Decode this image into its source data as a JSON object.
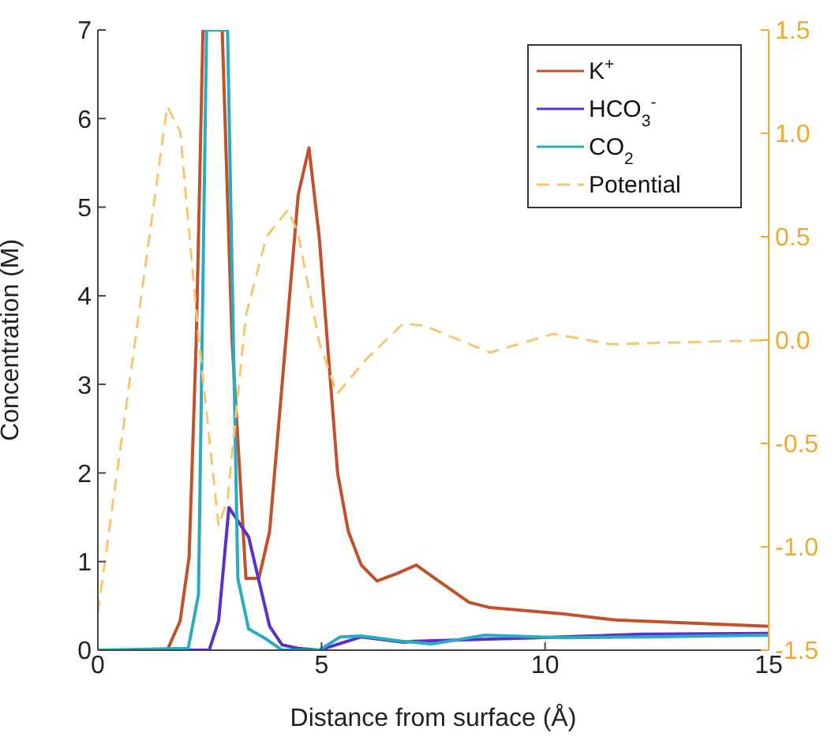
{
  "chart_data": {
    "type": "line",
    "xlabel": "Distance from surface (Å)",
    "ylabel": "Concentration (M)",
    "xlim": [
      0,
      15
    ],
    "xticks": [
      0,
      5,
      10,
      15
    ],
    "ylim": [
      0,
      7
    ],
    "yticks": [
      0,
      1,
      2,
      3,
      4,
      5,
      6,
      7
    ],
    "y2lim": [
      -1.5,
      1.5
    ],
    "y2ticks": [
      {
        "value": -1.5,
        "label": "-1.5"
      },
      {
        "value": -1,
        "label": "-1.0"
      },
      {
        "value": -0.5,
        "label": "-0.5"
      },
      {
        "value": 0,
        "label": "0.0"
      },
      {
        "value": 0.5,
        "label": "0.5"
      },
      {
        "value": 1,
        "label": "1.0"
      },
      {
        "value": 1.5,
        "label": "1.5"
      }
    ],
    "legend": "top right",
    "series": [
      {
        "name": "K$^{+}$",
        "color": "#c1502b",
        "x": [
          0,
          1.55,
          1.84,
          2.04,
          2.2,
          2.35,
          2.78,
          3.0,
          3.31,
          3.6,
          3.84,
          4.48,
          4.72,
          4.95,
          5.36,
          5.6,
          5.89,
          6.24,
          6.71,
          7.12,
          7.54,
          8.3,
          8.77,
          10.41,
          11.58,
          15
        ],
        "values": [
          0,
          0,
          0.33,
          1.05,
          3.5,
          7,
          7,
          3.5,
          0.81,
          0.81,
          1.34,
          5.14,
          5.67,
          4.66,
          2.0,
          1.34,
          0.96,
          0.78,
          0.87,
          0.96,
          0.81,
          0.54,
          0.48,
          0.41,
          0.34,
          0.27
        ]
      },
      {
        "name": "HCO$_{3}$$^{-}$",
        "color": "#5b30c9",
        "x": [
          0,
          2.49,
          2.7,
          2.93,
          3.37,
          3.84,
          4.12,
          4.48,
          4.95,
          5.89,
          6.83,
          7.07,
          9.82,
          12.17,
          15
        ],
        "values": [
          0,
          0,
          0.33,
          1.61,
          1.28,
          0.27,
          0.06,
          0.02,
          0,
          0.15,
          0.09,
          0.1,
          0.14,
          0.18,
          0.19
        ]
      },
      {
        "name": "CO$_{2}$",
        "color": "#2aacc0",
        "x": [
          0,
          2.02,
          2.25,
          2.43,
          2.9,
          3.13,
          3.37,
          3.78,
          4.12,
          4.95,
          5.42,
          5.89,
          6.83,
          7.48,
          8.65,
          10.41,
          12.17,
          15
        ],
        "values": [
          0,
          0.02,
          0.63,
          7,
          7,
          0.81,
          0.24,
          0.12,
          0,
          0,
          0.15,
          0.16,
          0.1,
          0.07,
          0.17,
          0.14,
          0.15,
          0.17
        ]
      },
      {
        "name": "Potential",
        "color": "#f7c66e",
        "axis": "y2",
        "line_style": "dashed",
        "x": [
          0,
          1.55,
          1.84,
          2.25,
          2.7,
          2.9,
          3.31,
          3.77,
          4.25,
          4.47,
          4.95,
          5.35,
          6.01,
          6.83,
          7.29,
          8.77,
          10.18,
          11.47,
          15
        ],
        "values": [
          -1.32,
          1.13,
          1.01,
          0.02,
          -0.9,
          -0.77,
          0.12,
          0.5,
          0.63,
          0.52,
          -0.01,
          -0.26,
          -0.09,
          0.08,
          0.07,
          -0.06,
          0.03,
          -0.02,
          0
        ]
      }
    ]
  }
}
